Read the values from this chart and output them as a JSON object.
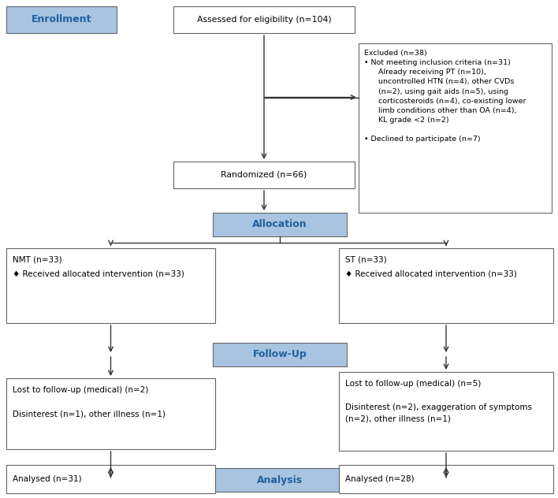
{
  "fig_width": 7.08,
  "fig_height": 6.32,
  "dpi": 100,
  "bg_color": "#ffffff",
  "box_blue_bg": "#a8c4e0",
  "box_border": "#666666",
  "arrow_color": "#333333",
  "enrollment_label": "Enrollment",
  "eligibility_text": "Assessed for eligibility (n=104)",
  "excluded_title": "Excluded (n=38)",
  "excluded_line1": "• Not meeting inclusion criteria (n=31)",
  "excluded_line2": "      Already receiving PT (n=10),",
  "excluded_line3": "      uncontrolled HTN (n=4), other CVDs",
  "excluded_line4": "      (n=2), using gait aids (n=5), using",
  "excluded_line5": "      corticosteroids (n=4), co-existing lower",
  "excluded_line6": "      limb conditions other than OA (n=4),",
  "excluded_line7": "      KL grade <2 (n=2)",
  "excluded_line8": "",
  "excluded_line9": "• Declined to participate (n=7)",
  "randomized_text": "Randomized (n=66)",
  "allocation_label": "Allocation",
  "nmt_line1": "NMT (n=33)",
  "nmt_line2": "♦ Received allocated intervention (n=33)",
  "st_line1": "ST (n=33)",
  "st_line2": "♦ Received allocated intervention (n=33)",
  "followup_label": "Follow-Up",
  "lost_nmt_line1": "Lost to follow-up (medical) (n=2)",
  "lost_nmt_line2": "",
  "lost_nmt_line3": "Disinterest (n=1), other illness (n=1)",
  "lost_st_line1": "Lost to follow-up (medical) (n=5)",
  "lost_st_line2": "",
  "lost_st_line3": "Disinterest (n=2), exaggeration of symptoms",
  "lost_st_line4": "(n=2), other illness (n=1)",
  "analysis_label": "Analysis",
  "analysed_nmt_text": "Analysed (n=31)",
  "analysed_st_text": "Analysed (n=28)"
}
